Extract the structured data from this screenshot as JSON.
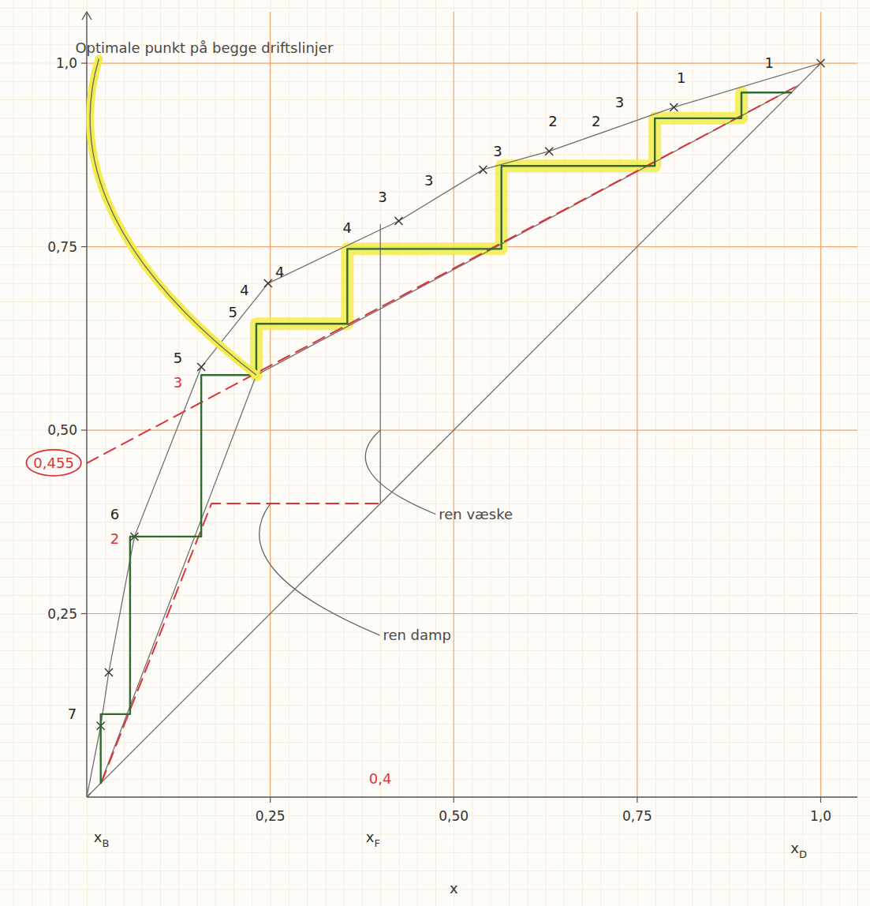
{
  "chart_data": {
    "type": "line",
    "xlim": [
      0,
      1.05
    ],
    "ylim": [
      0,
      1.07
    ],
    "xticks": [
      {
        "value": 0.25,
        "label": "0,25"
      },
      {
        "value": 0.5,
        "label": "0,50"
      },
      {
        "value": 0.75,
        "label": "0,75"
      },
      {
        "value": 1,
        "label": "1,0"
      }
    ],
    "yticks": [
      {
        "value": 0.25,
        "label": "0,25"
      },
      {
        "value": 0.5,
        "label": "0,50"
      },
      {
        "value": 0.75,
        "label": "0,75"
      },
      {
        "value": 1,
        "label": "1,0"
      }
    ],
    "grid": true,
    "series": [
      {
        "type": "line",
        "color": "#f3ec4e",
        "line_style": "highlight",
        "marker": "none",
        "x": [
          0.892,
          0.892,
          0.774,
          0.774,
          0.565,
          0.565,
          0.355,
          0.355,
          0.231,
          0.231
        ],
        "values": [
          0.96,
          0.925,
          0.925,
          0.86,
          0.86,
          0.747,
          0.747,
          0.645,
          0.645,
          0.575
        ]
      },
      {
        "type": "line",
        "color": "#707070",
        "line_style": "solid",
        "marker": "x",
        "x": [
          0,
          0.019,
          0.03,
          0.065,
          0.156,
          0.247,
          0.425,
          0.54,
          0.63,
          0.8,
          1.0
        ],
        "values": [
          0,
          0.097,
          0.17,
          0.355,
          0.586,
          0.7,
          0.785,
          0.855,
          0.88,
          0.94,
          1.0
        ]
      },
      {
        "type": "line",
        "color": "#707070",
        "line_style": "solid",
        "marker": "none",
        "x": [
          0,
          1
        ],
        "values": [
          0,
          1
        ]
      },
      {
        "type": "line",
        "color": "#707070",
        "line_style": "solid",
        "marker": "none",
        "x": [
          0.231,
          0.97
        ],
        "values": [
          0.575,
          0.97
        ]
      },
      {
        "type": "line",
        "color": "#707070",
        "line_style": "solid",
        "marker": "none",
        "x": [
          0.019,
          0.231
        ],
        "values": [
          0.019,
          0.575
        ]
      },
      {
        "type": "line",
        "color": "#707070",
        "line_style": "solid",
        "marker": "none",
        "x": [
          0.4,
          0.4
        ],
        "values": [
          0.4,
          0.78
        ]
      },
      {
        "type": "line",
        "color": "#d9343a",
        "line_style": "dashed",
        "marker": "none",
        "x": [
          0,
          0.97
        ],
        "values": [
          0.455,
          0.97
        ]
      },
      {
        "type": "line",
        "color": "#d9343a",
        "line_style": "dashed",
        "marker": "none",
        "x": [
          0.02,
          0.17,
          0.4
        ],
        "values": [
          0.02,
          0.4,
          0.4
        ]
      },
      {
        "type": "line",
        "color": "#2f6b2f",
        "line_style": "solid",
        "marker": "none",
        "x": [
          0.96,
          0.892,
          0.892,
          0.774,
          0.774,
          0.565,
          0.565,
          0.355,
          0.355,
          0.231,
          0.231,
          0.156,
          0.156,
          0.059,
          0.059,
          0.019,
          0.019
        ],
        "values": [
          0.96,
          0.96,
          0.925,
          0.925,
          0.86,
          0.86,
          0.747,
          0.747,
          0.645,
          0.645,
          0.575,
          0.575,
          0.355,
          0.355,
          0.113,
          0.113,
          0.019
        ]
      }
    ],
    "annotations": [
      {
        "text": "Optimale punkt på begge driftslinjer",
        "x": 0.16,
        "y": 1.02,
        "color": "#4a4a4a",
        "target_x": 0.231,
        "target_y": 0.575
      },
      {
        "text": "ren væske",
        "x": 0.53,
        "y": 0.385,
        "color": "#4a4a4a",
        "target_x": 0.4,
        "target_y": 0.5
      },
      {
        "text": "ren damp",
        "x": 0.45,
        "y": 0.22,
        "color": "#4a4a4a",
        "target_x": 0.25,
        "target_y": 0.4
      },
      {
        "text": "0,455",
        "x": -0.045,
        "y": 0.455,
        "color": "#d9343a",
        "shape": "ellipse"
      },
      {
        "text": "0,4",
        "x": 0.4,
        "y": 0.025,
        "color": "#d9343a"
      },
      {
        "text": "1",
        "x": 0.81,
        "y": 0.98,
        "color": "#222222"
      },
      {
        "text": "1",
        "x": 0.93,
        "y": 1.0,
        "color": "#222222"
      },
      {
        "text": "2",
        "x": 0.635,
        "y": 0.92,
        "color": "#222222"
      },
      {
        "text": "2",
        "x": 0.694,
        "y": 0.92,
        "color": "#222222"
      },
      {
        "text": "3",
        "x": 0.726,
        "y": 0.946,
        "color": "#222222"
      },
      {
        "text": "3",
        "x": 0.56,
        "y": 0.88,
        "color": "#222222"
      },
      {
        "text": "3",
        "x": 0.403,
        "y": 0.817,
        "color": "#222222"
      },
      {
        "text": "3",
        "x": 0.466,
        "y": 0.84,
        "color": "#222222"
      },
      {
        "text": "4",
        "x": 0.355,
        "y": 0.775,
        "color": "#222222"
      },
      {
        "text": "4",
        "x": 0.215,
        "y": 0.69,
        "color": "#222222"
      },
      {
        "text": "4",
        "x": 0.263,
        "y": 0.715,
        "color": "#222222"
      },
      {
        "text": "5",
        "x": 0.199,
        "y": 0.66,
        "color": "#222222"
      },
      {
        "text": "5",
        "x": 0.124,
        "y": 0.598,
        "color": "#222222"
      },
      {
        "text": "3",
        "x": 0.124,
        "y": 0.565,
        "color": "#d9343a"
      },
      {
        "text": "6",
        "x": 0.038,
        "y": 0.385,
        "color": "#222222"
      },
      {
        "text": "2",
        "x": 0.038,
        "y": 0.352,
        "color": "#d9343a"
      },
      {
        "text": "7",
        "x": -0.02,
        "y": 0.113,
        "color": "#222222"
      },
      {
        "text": "x",
        "subscript": "B",
        "x": 0.02,
        "y": -0.055,
        "color": "#333333"
      },
      {
        "text": "x",
        "subscript": "F",
        "x": 0.39,
        "y": -0.055,
        "color": "#333333"
      },
      {
        "text": "x",
        "subscript": "D",
        "x": 0.97,
        "y": -0.07,
        "color": "#333333"
      },
      {
        "text": "x",
        "x": 0.5,
        "y": -0.125,
        "color": "#333333"
      }
    ]
  }
}
